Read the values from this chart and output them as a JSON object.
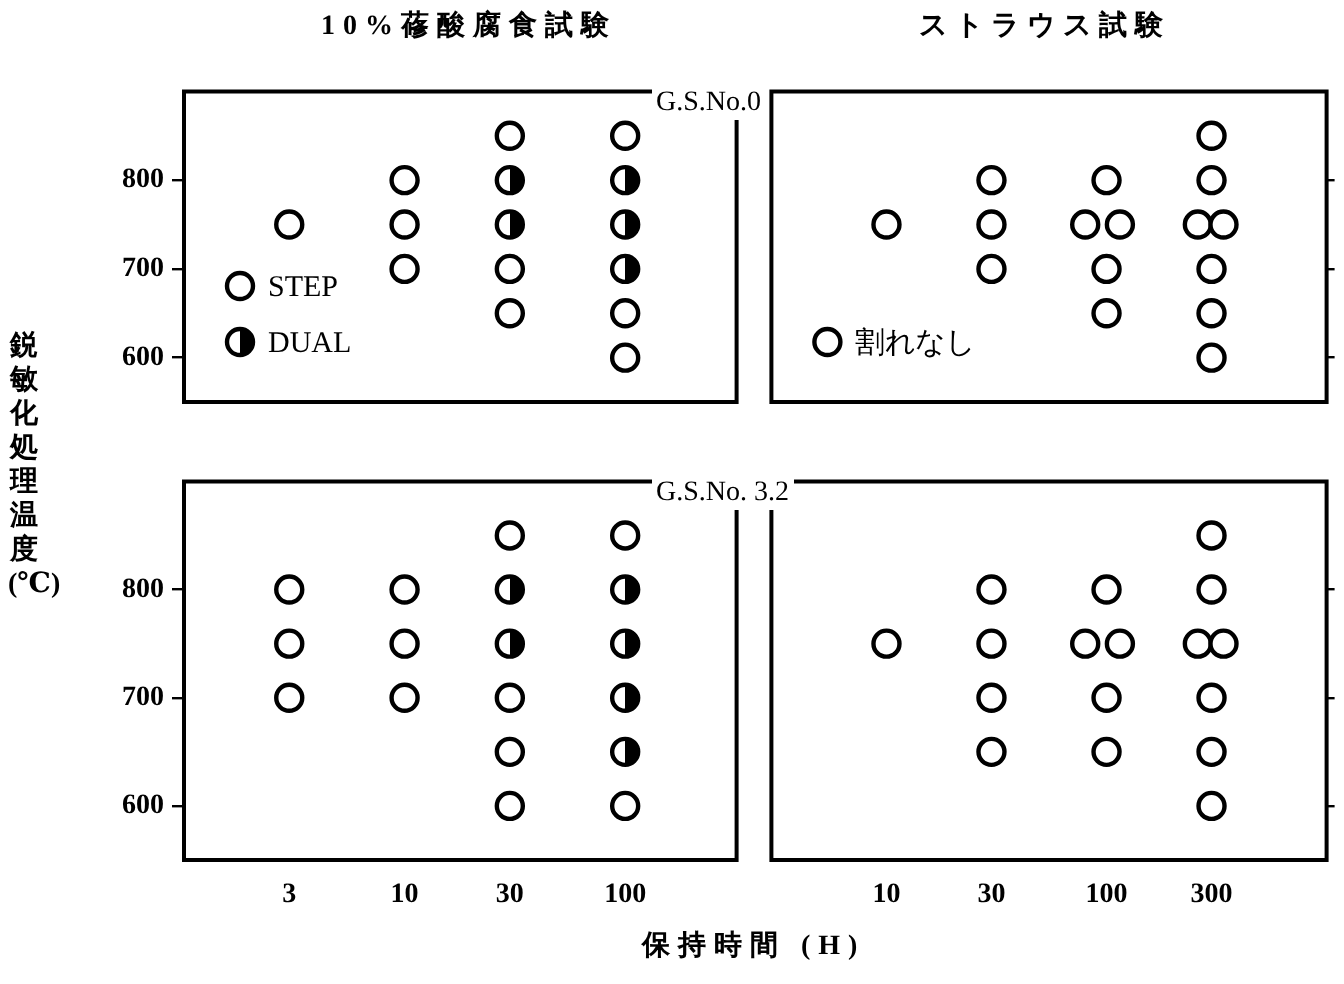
{
  "chart_data": [
    {
      "type": "scatter",
      "title": "10%蓚酸腐食試験",
      "ylabel": "鋭敏化処理温度 (℃)",
      "annotations": [
        "G.S.No.0"
      ],
      "log": "x",
      "xlim": [
        1,
        320
      ],
      "xticks": [
        3,
        10,
        30,
        100
      ],
      "ylim": [
        550,
        900
      ],
      "yticks": [
        600,
        700,
        800
      ],
      "tick_labels": "y",
      "legend": "bottom left",
      "series": [
        {
          "name": "STEP",
          "color": "#000000",
          "marker": "circle",
          "x": [
            3,
            10,
            10,
            10,
            30,
            30,
            30,
            100,
            100,
            100
          ],
          "values": [
            750,
            800,
            750,
            700,
            850,
            700,
            650,
            850,
            650,
            600
          ]
        },
        {
          "name": "DUAL",
          "color": "#000000",
          "marker": "half-circle",
          "x": [
            30,
            30,
            100,
            100,
            100
          ],
          "values": [
            800,
            750,
            800,
            750,
            700
          ]
        }
      ]
    },
    {
      "type": "scatter",
      "title": "ストラウス試験",
      "log": "x",
      "xlim": [
        3,
        1000
      ],
      "xticks": [
        10,
        30,
        100,
        300
      ],
      "ylim": [
        550,
        900
      ],
      "yticks": [
        600,
        700,
        800
      ],
      "tick_labels": false,
      "legend": "bottom left",
      "series": [
        {
          "name": "割れなし",
          "color": "#000000",
          "marker": "circle",
          "x": [
            10,
            30,
            30,
            30,
            100,
            80,
            115,
            100,
            100,
            300,
            300,
            260,
            340,
            300,
            300,
            300
          ],
          "values": [
            750,
            800,
            750,
            700,
            800,
            750,
            750,
            700,
            650,
            850,
            800,
            750,
            750,
            700,
            650,
            600
          ]
        }
      ]
    },
    {
      "type": "scatter",
      "xlabel": "保持時間 (H)",
      "annotations": [
        "G.S.No. 3.2"
      ],
      "log": "x",
      "xlim": [
        1,
        320
      ],
      "xticks": [
        3,
        10,
        30,
        100
      ],
      "ylim": [
        550,
        900
      ],
      "yticks": [
        600,
        700,
        800
      ],
      "series": [
        {
          "color": "#000000",
          "marker": "circle",
          "x": [
            3,
            3,
            3,
            10,
            10,
            10,
            30,
            30,
            30,
            30,
            100,
            100
          ],
          "values": [
            800,
            750,
            700,
            800,
            750,
            700,
            850,
            700,
            650,
            600,
            850,
            600
          ]
        },
        {
          "color": "#000000",
          "marker": "half-circle",
          "x": [
            30,
            30,
            100,
            100,
            100,
            100
          ],
          "values": [
            800,
            750,
            800,
            750,
            700,
            650
          ]
        }
      ]
    },
    {
      "type": "scatter",
      "log": "x",
      "xlim": [
        3,
        1000
      ],
      "xticks": [
        10,
        30,
        100,
        300
      ],
      "ylim": [
        550,
        900
      ],
      "yticks": [
        600,
        700,
        800
      ],
      "tick_labels": "x",
      "series": [
        {
          "color": "#000000",
          "marker": "circle",
          "x": [
            10,
            30,
            30,
            30,
            30,
            100,
            80,
            115,
            100,
            100,
            300,
            300,
            260,
            340,
            300,
            300,
            300
          ],
          "values": [
            750,
            800,
            750,
            700,
            650,
            800,
            750,
            750,
            700,
            650,
            850,
            800,
            750,
            750,
            700,
            650,
            600
          ]
        }
      ]
    }
  ]
}
